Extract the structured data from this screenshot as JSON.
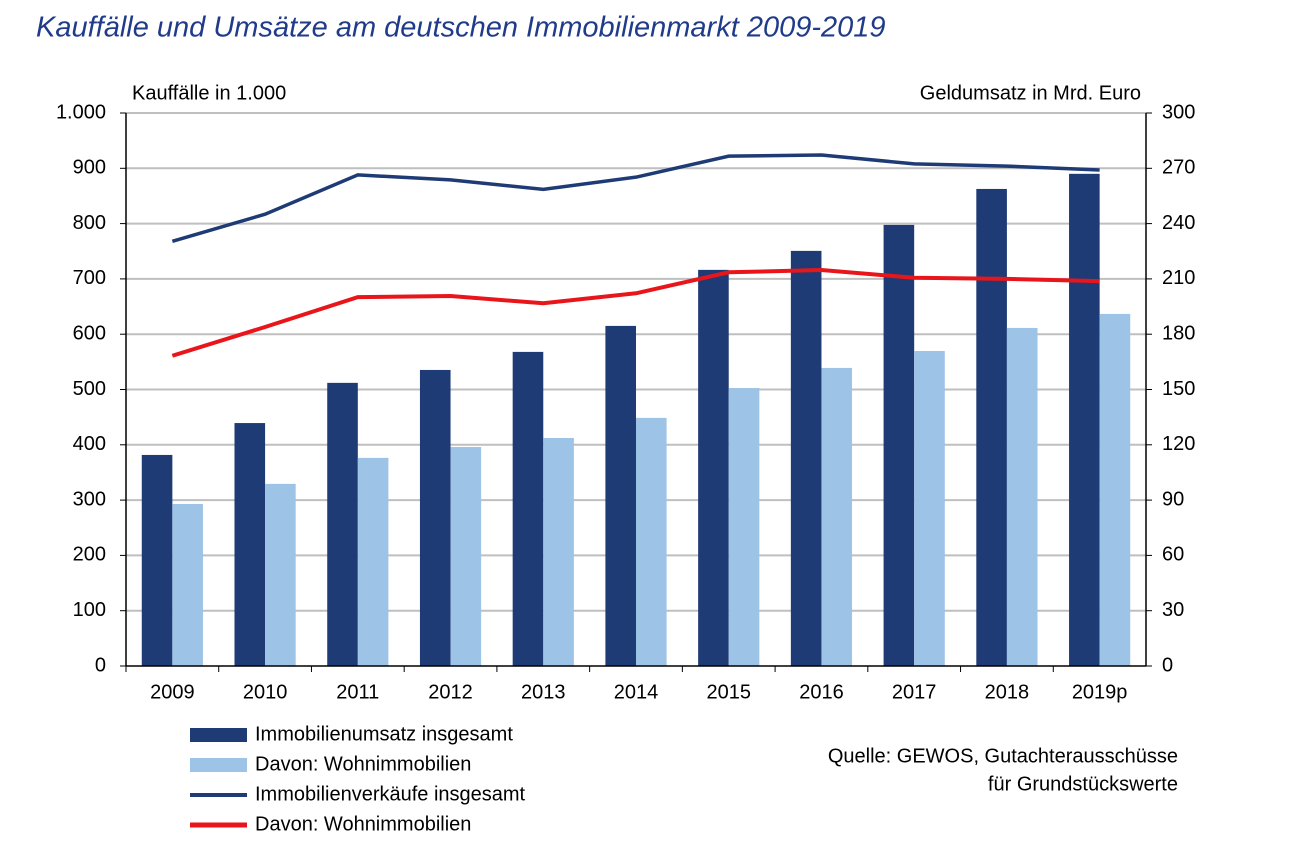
{
  "chart_data": {
    "type": "combo",
    "title": "Kauffälle und Umsätze am deutschen Immobilienmarkt 2009-2019",
    "y_label": "Kauffälle in 1.000",
    "y2_label": "Geldumsatz in Mrd. Euro",
    "source": [
      "Quelle: GEWOS, Gutachterausschüsse",
      "für Grundstückswerte"
    ],
    "categories": [
      "2009",
      "2010",
      "2011",
      "2012",
      "2013",
      "2014",
      "2015",
      "2016",
      "2017",
      "2018",
      "2019p"
    ],
    "ylim": [
      0,
      1000
    ],
    "yticks": [
      0,
      100,
      200,
      300,
      400,
      500,
      600,
      700,
      800,
      900,
      {
        "value": 1000,
        "label": "1.000"
      }
    ],
    "y2lim": [
      0,
      300
    ],
    "y2ticks": [
      0,
      30,
      60,
      90,
      120,
      150,
      180,
      210,
      240,
      270,
      300
    ],
    "grid": true,
    "series": [
      {
        "name": "Immobilienumsatz insgesamt",
        "type": "bar",
        "axis": "y2",
        "color": "#1f3b75",
        "values": [
          114.5,
          131.8,
          153.6,
          160.6,
          170.4,
          184.5,
          214.9,
          225.2,
          239.3,
          258.8,
          267
        ]
      },
      {
        "name": "Davon: Wohnimmobilien",
        "type": "bar",
        "axis": "y2",
        "color": "#9dc3e6",
        "values": [
          87.9,
          98.8,
          112.9,
          118.8,
          123.7,
          134.6,
          150.8,
          161.7,
          170.9,
          183.4,
          191
        ]
      },
      {
        "name": "Immobilienverkäufe insgesamt",
        "type": "line",
        "color": "#1f3b75",
        "values": [
          768,
          817,
          888,
          879,
          862,
          884,
          922,
          924,
          908,
          904,
          897
        ]
      },
      {
        "name": "Davon: Wohnimmobilien",
        "type": "line",
        "color": "#e8161b",
        "values": [
          561,
          613,
          667,
          669,
          656,
          674,
          712,
          716,
          702,
          700,
          696
        ]
      }
    ]
  }
}
